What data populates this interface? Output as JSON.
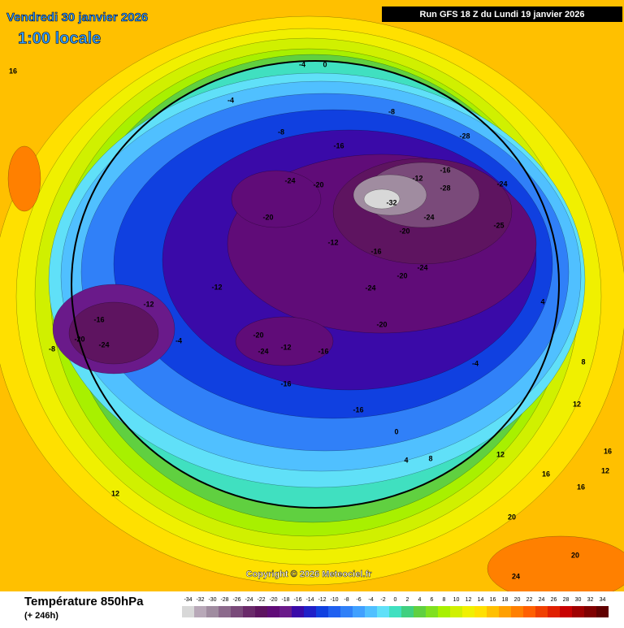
{
  "header": {
    "date": "Vendredi 30 janvier 2026",
    "time": "1:00 locale",
    "run": "Run GFS 18 Z du Lundi 19 janvier 2026"
  },
  "copyright": "Copyright © 2026 Meteociel.fr",
  "footer": {
    "title": "Température 850hPa",
    "lead": "(+ 246h)"
  },
  "scale": {
    "values": [
      -34,
      -32,
      -30,
      -28,
      -26,
      -24,
      -22,
      -20,
      -18,
      -16,
      -14,
      -12,
      -10,
      -8,
      -6,
      -4,
      -2,
      0,
      2,
      4,
      6,
      8,
      10,
      12,
      14,
      16,
      18,
      20,
      22,
      24,
      26,
      28,
      30,
      32,
      34
    ],
    "colors": [
      "#d8d8d8",
      "#b8a8b8",
      "#a08ca0",
      "#8c6a8c",
      "#7a4a7a",
      "#6a2a6a",
      "#5e1460",
      "#600c78",
      "#6a1a8a",
      "#3a0aa8",
      "#2020c8",
      "#1040e0",
      "#2060f0",
      "#3080f8",
      "#40a0ff",
      "#50c0ff",
      "#60e0f8",
      "#40e0c0",
      "#40d080",
      "#60d040",
      "#80e020",
      "#a8f000",
      "#d0f000",
      "#f0f000",
      "#ffe000",
      "#ffc000",
      "#ffa000",
      "#ff8000",
      "#ff6000",
      "#f04000",
      "#e02000",
      "#c80000",
      "#a00000",
      "#800000",
      "#600000"
    ]
  },
  "contour_labels": [
    -28,
    -32,
    -28,
    -25,
    -24,
    -24,
    -20,
    -16,
    -12,
    -16,
    -20,
    -24,
    -20,
    -24,
    -24,
    -20,
    -16,
    -12,
    -16,
    -20,
    -24,
    -20,
    -16,
    -12,
    -8,
    -4,
    0,
    -4,
    -8,
    -12,
    -16,
    -24,
    -20,
    -16,
    -12,
    -8,
    -4,
    4,
    8,
    12,
    16,
    16,
    12,
    8,
    4,
    0,
    -4,
    20,
    24,
    20,
    16,
    12,
    12,
    16
  ]
}
